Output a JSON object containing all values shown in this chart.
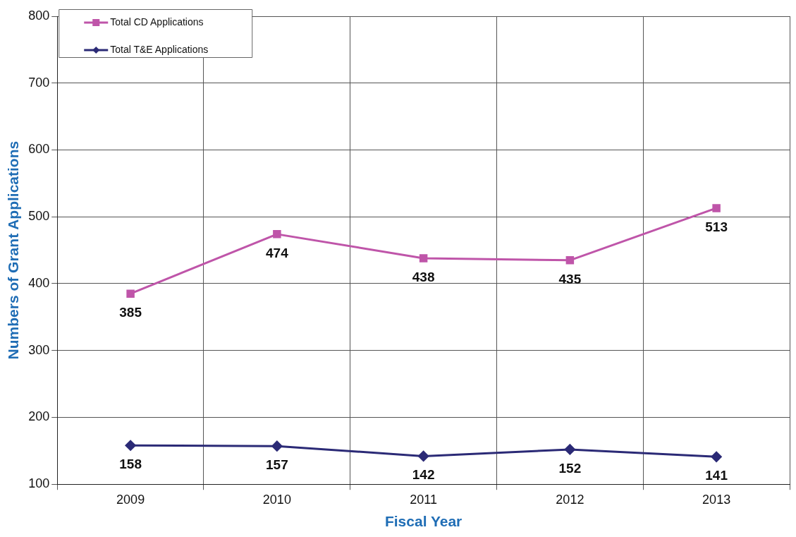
{
  "chart_data": {
    "type": "line",
    "xlabel": "Fiscal Year",
    "ylabel": "Numbers of Grant Applications",
    "categories": [
      "2009",
      "2010",
      "2011",
      "2012",
      "2013"
    ],
    "series": [
      {
        "name": "Total CD Applications",
        "color": "#bf55a9",
        "marker": "square",
        "values": [
          385,
          474,
          438,
          435,
          513
        ]
      },
      {
        "name": "Total T&E Applications",
        "color": "#2b2a76",
        "marker": "diamond",
        "values": [
          158,
          157,
          142,
          152,
          141
        ]
      }
    ],
    "ylim": [
      100,
      800
    ],
    "yticks": [
      100,
      200,
      300,
      400,
      500,
      600,
      700,
      800
    ],
    "grid": true,
    "legend": "top left",
    "data_labels": true
  }
}
